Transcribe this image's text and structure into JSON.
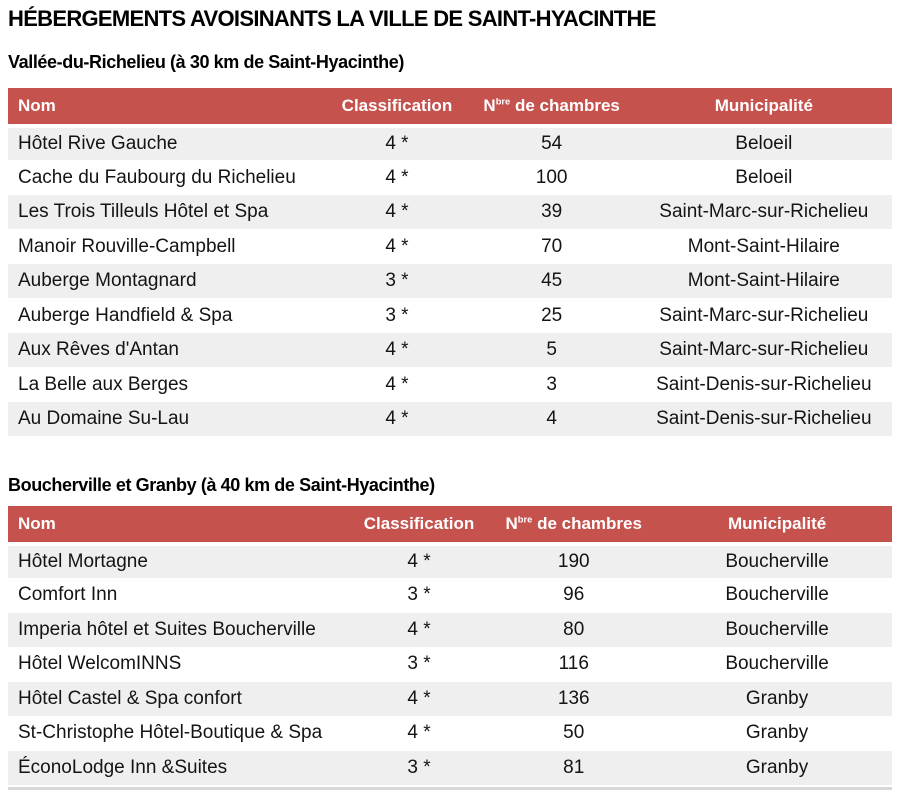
{
  "page": {
    "title": "HÉBERGEMENTS AVOISINANTS LA VILLE DE SAINT-HYACINTHE"
  },
  "colors": {
    "table_header_bg": "#c5524d",
    "table_header_text": "#ffffff",
    "row_alternate_bg": "#efefef",
    "body_text": "#141414"
  },
  "columns": {
    "nom": "Nom",
    "classification": "Classification",
    "chambres_prefix": "N",
    "chambres_sup": "bre",
    "chambres_suffix": " de chambres",
    "municipalite": "Municipalité"
  },
  "sections": [
    {
      "title": "Vallée-du-Richelieu (à 30 km de Saint-Hyacinthe)",
      "rows": [
        {
          "name": "Hôtel Rive Gauche",
          "classification": "4 *",
          "chambres": "54",
          "municipalite": "Beloeil"
        },
        {
          "name": "Cache du Faubourg du Richelieu",
          "classification": "4 *",
          "chambres": "100",
          "municipalite": "Beloeil"
        },
        {
          "name": "Les Trois Tilleuls Hôtel et Spa",
          "classification": "4 *",
          "chambres": "39",
          "municipalite": "Saint-Marc-sur-Richelieu"
        },
        {
          "name": "Manoir Rouville-Campbell",
          "classification": "4 *",
          "chambres": "70",
          "municipalite": "Mont-Saint-Hilaire"
        },
        {
          "name": "Auberge Montagnard",
          "classification": "3 *",
          "chambres": "45",
          "municipalite": "Mont-Saint-Hilaire"
        },
        {
          "name": "Auberge Handfield & Spa",
          "classification": "3 *",
          "chambres": "25",
          "municipalite": "Saint-Marc-sur-Richelieu"
        },
        {
          "name": "Aux Rêves d'Antan",
          "classification": "4 *",
          "chambres": "5",
          "municipalite": "Saint-Marc-sur-Richelieu"
        },
        {
          "name": "La Belle aux Berges",
          "classification": "4 *",
          "chambres": "3",
          "municipalite": "Saint-Denis-sur-Richelieu"
        },
        {
          "name": "Au Domaine Su-Lau",
          "classification": "4 *",
          "chambres": "4",
          "municipalite": "Saint-Denis-sur-Richelieu"
        }
      ]
    },
    {
      "title": "Boucherville et Granby (à 40 km de Saint-Hyacinthe)",
      "rows": [
        {
          "name": "Hôtel Mortagne",
          "classification": "4 *",
          "chambres": "190",
          "municipalite": "Boucherville"
        },
        {
          "name": "Comfort Inn",
          "classification": "3 *",
          "chambres": "96",
          "municipalite": "Boucherville"
        },
        {
          "name": "Imperia hôtel et Suites Boucherville",
          "classification": "4 *",
          "chambres": "80",
          "municipalite": "Boucherville"
        },
        {
          "name": "Hôtel WelcomINNS",
          "classification": "3 *",
          "chambres": "116",
          "municipalite": "Boucherville"
        },
        {
          "name": "Hôtel Castel & Spa confort",
          "classification": "4 *",
          "chambres": "136",
          "municipalite": "Granby"
        },
        {
          "name": "St-Christophe Hôtel-Boutique & Spa",
          "classification": "4 *",
          "chambres": "50",
          "municipalite": "Granby"
        },
        {
          "name": "ÉconoLodge Inn &Suites",
          "classification": "3 *",
          "chambres": "81",
          "municipalite": "Granby"
        }
      ]
    }
  ]
}
